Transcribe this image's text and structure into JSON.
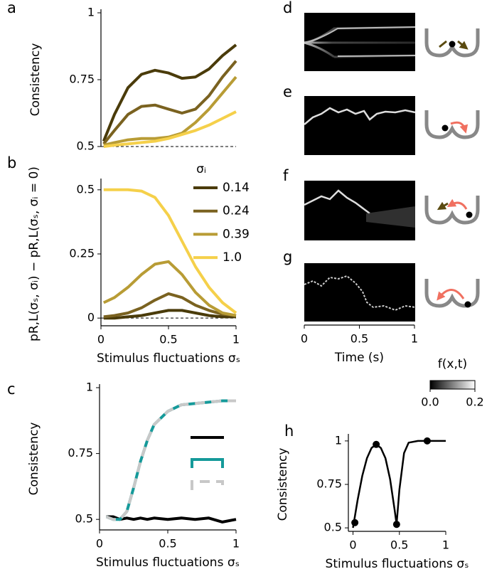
{
  "chart_data": [
    {
      "type": "line",
      "panel_label": "a",
      "ylabel": "Consistency",
      "x": [
        0.02,
        0.1,
        0.2,
        0.3,
        0.4,
        0.5,
        0.6,
        0.7,
        0.8,
        0.9,
        1.0
      ],
      "xlim": [
        0,
        1
      ],
      "ylim": [
        0.5,
        1
      ],
      "yticks": [
        0.5,
        0.75,
        1
      ],
      "hline": 0.5,
      "series": [
        {
          "color": "#4a3b0a",
          "values": [
            0.52,
            0.62,
            0.72,
            0.77,
            0.785,
            0.775,
            0.755,
            0.76,
            0.79,
            0.84,
            0.88
          ]
        },
        {
          "color": "#7a6220",
          "values": [
            0.51,
            0.56,
            0.62,
            0.65,
            0.655,
            0.64,
            0.625,
            0.64,
            0.69,
            0.76,
            0.82
          ]
        },
        {
          "color": "#b89c35",
          "values": [
            0.505,
            0.515,
            0.525,
            0.53,
            0.53,
            0.535,
            0.55,
            0.59,
            0.64,
            0.7,
            0.76
          ]
        },
        {
          "color": "#f5d04a",
          "values": [
            0.5,
            0.505,
            0.51,
            0.515,
            0.52,
            0.53,
            0.545,
            0.56,
            0.58,
            0.605,
            0.63
          ]
        }
      ]
    },
    {
      "type": "line",
      "panel_label": "b",
      "ylabel": "pR,L(σₛ, σᵢ) − pR,L(σₛ, σᵢ = 0)",
      "xlabel": "Stimulus fluctuations σₛ",
      "legend_title": "σᵢ",
      "x": [
        0.02,
        0.1,
        0.2,
        0.3,
        0.4,
        0.5,
        0.6,
        0.7,
        0.8,
        0.9,
        1.0
      ],
      "xlim": [
        0,
        1
      ],
      "xticks": [
        0,
        0.5,
        1
      ],
      "ylim": [
        -0.03,
        0.53
      ],
      "yticks": [
        0,
        0.25,
        0.5
      ],
      "hline": 0,
      "series": [
        {
          "name": "0.14",
          "color": "#4a3b0a",
          "values": [
            0,
            0,
            0.005,
            0.01,
            0.02,
            0.03,
            0.03,
            0.02,
            0.01,
            0.005,
            0.005
          ]
        },
        {
          "name": "0.24",
          "color": "#7a6220",
          "values": [
            0.005,
            0.01,
            0.02,
            0.04,
            0.07,
            0.095,
            0.08,
            0.05,
            0.03,
            0.015,
            0.01
          ]
        },
        {
          "name": "0.39",
          "color": "#b89c35",
          "values": [
            0.06,
            0.08,
            0.12,
            0.17,
            0.21,
            0.22,
            0.17,
            0.1,
            0.05,
            0.02,
            0.01
          ]
        },
        {
          "name": "1.0",
          "color": "#f5d04a",
          "values": [
            0.5,
            0.5,
            0.5,
            0.495,
            0.47,
            0.4,
            0.3,
            0.2,
            0.12,
            0.06,
            0.02
          ]
        }
      ]
    },
    {
      "type": "line",
      "panel_label": "c",
      "ylabel": "Consistency",
      "xlabel": "Stimulus fluctuations σₛ",
      "legend": true,
      "x": [
        0.05,
        0.1,
        0.15,
        0.2,
        0.25,
        0.3,
        0.35,
        0.4,
        0.5,
        0.6,
        0.7,
        0.8,
        0.9,
        1.0
      ],
      "xlim": [
        0,
        1
      ],
      "xticks": [
        0,
        0.5,
        1
      ],
      "ylim": [
        0.46,
        1.0
      ],
      "yticks": [
        0.5,
        0.75,
        1
      ],
      "series": [
        {
          "color": "#000000",
          "values": [
            0.51,
            0.51,
            0.5,
            0.505,
            0.5,
            0.505,
            0.5,
            0.505,
            0.5,
            0.505,
            0.5,
            0.505,
            0.49,
            0.5
          ]
        },
        {
          "color": "#159a9a",
          "values": [
            0.51,
            0.5,
            0.5,
            0.53,
            0.62,
            0.72,
            0.8,
            0.86,
            0.91,
            0.935,
            0.94,
            0.945,
            0.95,
            0.95
          ]
        },
        {
          "color": "#c8c8c8",
          "dash": true,
          "values": [
            0.51,
            0.5,
            0.5,
            0.53,
            0.62,
            0.72,
            0.8,
            0.86,
            0.91,
            0.935,
            0.94,
            0.945,
            0.95,
            0.95
          ]
        }
      ]
    },
    {
      "type": "heatmap",
      "panel_labels": [
        "d",
        "e",
        "f",
        "g"
      ],
      "xlabel": "Time (s)",
      "xlim": [
        0,
        1
      ],
      "xticks": [
        0,
        0.5,
        1
      ],
      "colorbar": {
        "label": "f(x,t)",
        "lim": [
          0,
          0.2
        ],
        "ticks": [
          {
            "value": 0,
            "label": "0.0"
          },
          {
            "value": 0.2,
            "label": "0.2"
          }
        ]
      }
    },
    {
      "type": "line",
      "panel_label": "h",
      "ylabel": "Consistency",
      "xlabel": "Stimulus fluctuations σₛ",
      "x": [
        0,
        0.05,
        0.1,
        0.15,
        0.2,
        0.25,
        0.3,
        0.35,
        0.4,
        0.45,
        0.47,
        0.5,
        0.55,
        0.6,
        0.7,
        0.8,
        0.9,
        1.0
      ],
      "xlim": [
        -0.05,
        1
      ],
      "xticks": [
        0,
        0.5,
        1
      ],
      "ylim": [
        0.48,
        1.02
      ],
      "yticks": [
        0.5,
        0.75,
        1
      ],
      "series": [
        {
          "color": "#000000",
          "values": [
            0.5,
            0.66,
            0.8,
            0.9,
            0.96,
            0.98,
            0.96,
            0.9,
            0.78,
            0.6,
            0.52,
            0.72,
            0.93,
            0.99,
            1,
            1,
            1,
            1
          ]
        }
      ],
      "points": {
        "color": "#000000",
        "x": [
          0.02,
          0.25,
          0.47,
          0.8
        ],
        "values": [
          0.53,
          0.98,
          0.52,
          1.0
        ]
      }
    }
  ]
}
